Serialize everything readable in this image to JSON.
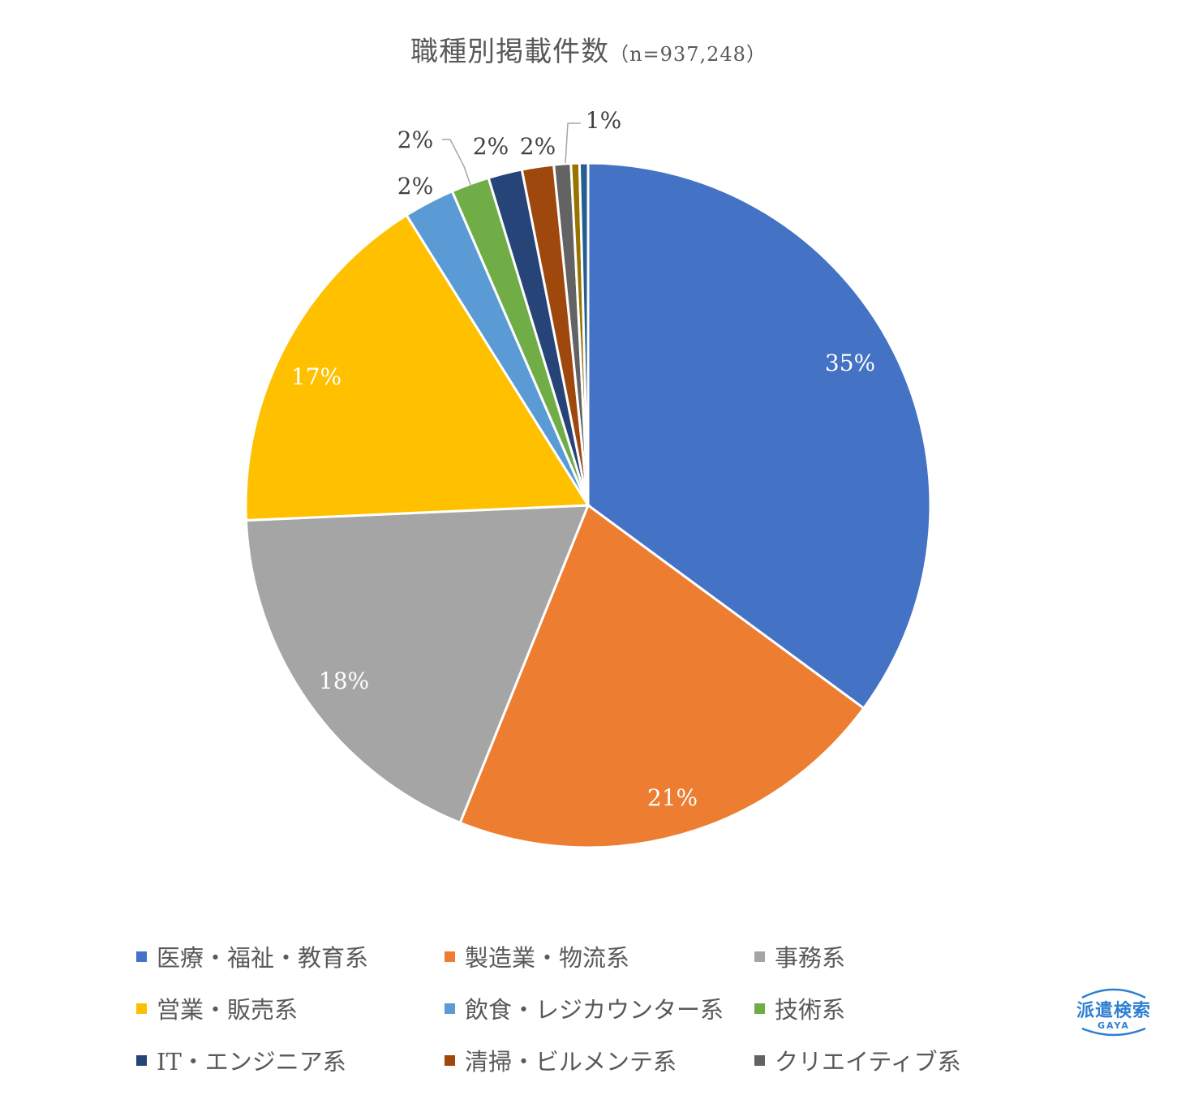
{
  "chart_data": {
    "type": "pie",
    "title": "職種別掲載件数",
    "subtitle": "（n=937,248）",
    "legend_position": "bottom",
    "categories": [
      "医療・福祉・教育系",
      "製造業・物流系",
      "事務系",
      "営業・販売系",
      "飲食・レジカウンター系",
      "技術系",
      "IT・エンジニア系",
      "清掃・ビルメンテ系",
      "クリエイティブ系",
      "",
      ""
    ],
    "values": [
      35.1,
      21.0,
      18.2,
      16.8,
      2.4,
      1.8,
      1.6,
      1.5,
      0.8,
      0.4,
      0.4
    ],
    "data_labels": [
      "35%",
      "21%",
      "18%",
      "17%",
      "2%",
      "2%",
      "2%",
      "2%",
      "1%",
      "",
      ""
    ],
    "colors": [
      "#4472C4",
      "#ED7D31",
      "#A5A5A5",
      "#FFC000",
      "#5B9BD5",
      "#70AD47",
      "#264478",
      "#9E480E",
      "#636363",
      "#997300",
      "#255E91"
    ]
  },
  "legend": {
    "items": [
      {
        "label": "医療・福祉・教育系",
        "color": "#4472C4"
      },
      {
        "label": "製造業・物流系",
        "color": "#ED7D31"
      },
      {
        "label": "事務系",
        "color": "#A5A5A5"
      },
      {
        "label": "営業・販売系",
        "color": "#FFC000"
      },
      {
        "label": "飲食・レジカウンター系",
        "color": "#5B9BD5"
      },
      {
        "label": "技術系",
        "color": "#70AD47"
      },
      {
        "label": "IT・エンジニア系",
        "color": "#264478"
      },
      {
        "label": "清掃・ビルメンテ系",
        "color": "#9E480E"
      },
      {
        "label": "クリエイティブ系",
        "color": "#636363"
      }
    ]
  },
  "logo": {
    "main_text": "派遣検索",
    "sub_text": "GAYA",
    "color": "#2f7fd1"
  }
}
